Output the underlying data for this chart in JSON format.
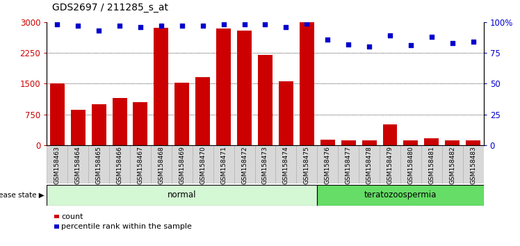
{
  "title": "GDS2697 / 211285_s_at",
  "samples": [
    "GSM158463",
    "GSM158464",
    "GSM158465",
    "GSM158466",
    "GSM158467",
    "GSM158468",
    "GSM158469",
    "GSM158470",
    "GSM158471",
    "GSM158472",
    "GSM158473",
    "GSM158474",
    "GSM158475",
    "GSM158476",
    "GSM158477",
    "GSM158478",
    "GSM158479",
    "GSM158480",
    "GSM158481",
    "GSM158482",
    "GSM158483"
  ],
  "counts": [
    1500,
    860,
    1000,
    1150,
    1050,
    2870,
    1520,
    1660,
    2840,
    2800,
    2200,
    1550,
    2990,
    130,
    110,
    120,
    510,
    110,
    160,
    120,
    110
  ],
  "percentile": [
    98,
    97,
    93,
    97,
    96,
    97,
    97,
    97,
    98,
    98,
    98,
    96,
    99,
    86,
    82,
    80,
    89,
    81,
    88,
    83,
    84
  ],
  "disease_groups": [
    {
      "label": "normal",
      "start": 0,
      "end": 13,
      "color_light": "#d4f7d4",
      "color_dark": "#00cc00"
    },
    {
      "label": "teratozoospermia",
      "start": 13,
      "end": 21,
      "color_light": "#66dd66",
      "color_dark": "#00aa00"
    }
  ],
  "bar_color": "#cc0000",
  "dot_color": "#0000cc",
  "left_ylim": [
    0,
    3000
  ],
  "right_ylim": [
    0,
    100
  ],
  "left_yticks": [
    0,
    750,
    1500,
    2250,
    3000
  ],
  "right_yticks": [
    0,
    25,
    50,
    75,
    100
  ],
  "left_yticklabels": [
    "0",
    "750",
    "1500",
    "2250",
    "3000"
  ],
  "right_yticklabels": [
    "0",
    "25",
    "50",
    "75",
    "100%"
  ],
  "grid_lines": [
    750,
    1500,
    2250
  ],
  "plot_bg": "#ffffff",
  "fig_bg": "#ffffff",
  "xtick_bg": "#d8d8d8",
  "legend_count_label": "count",
  "legend_pct_label": "percentile rank within the sample",
  "disease_label": "disease state"
}
